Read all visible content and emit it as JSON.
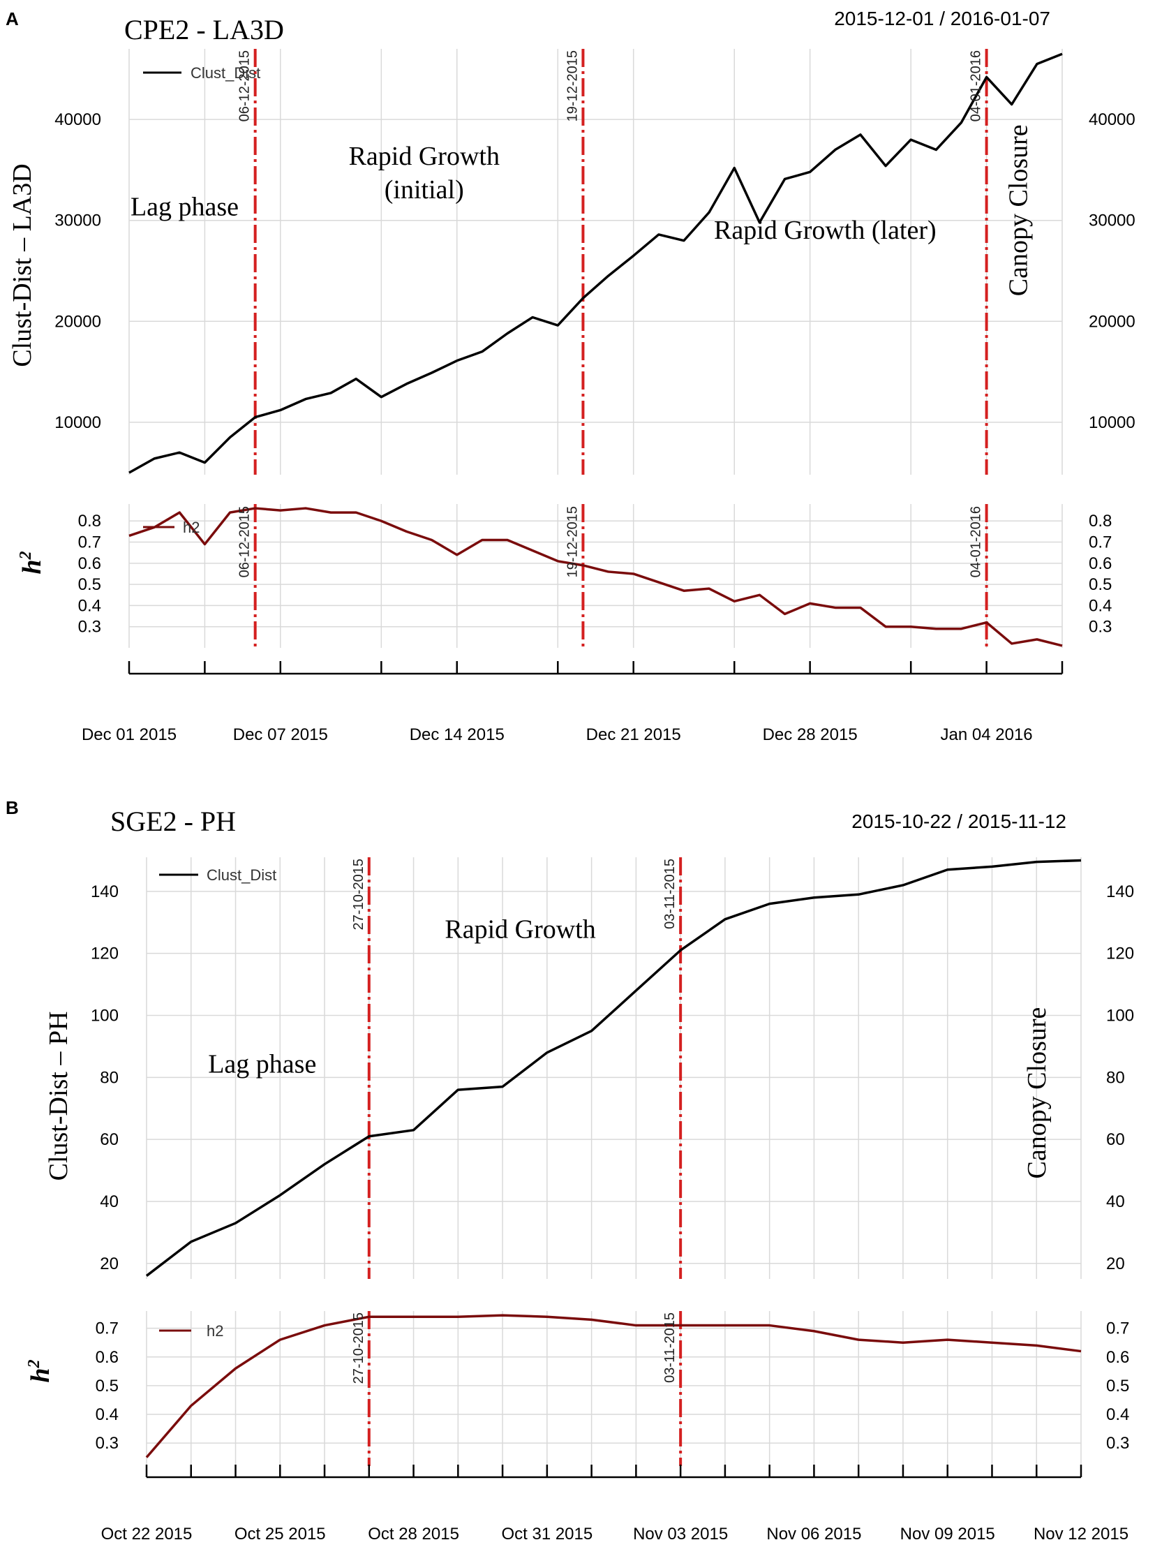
{
  "colors": {
    "clust_line": "#000000",
    "h2_line": "#7a0c0c",
    "event_line": "#d42020",
    "grid": "#d9d9d9",
    "axis": "#000000",
    "text": "#000000"
  },
  "chart_data": [
    {
      "type": "line",
      "panel_label": "A",
      "title": "CPE2 - LA3D",
      "date_range": "2015-12-01 / 2016-01-07",
      "x_dates": [
        "2015-12-01",
        "2016-01-07"
      ],
      "x_start": 0,
      "x_end": 37,
      "x_ticks": [
        {
          "x": 0,
          "label": "Dec 01 2015"
        },
        {
          "x": 6,
          "label": "Dec 07 2015"
        },
        {
          "x": 13,
          "label": "Dec 14 2015"
        },
        {
          "x": 20,
          "label": "Dec 21 2015"
        },
        {
          "x": 27,
          "label": "Dec 28 2015"
        },
        {
          "x": 34,
          "label": "Jan 04 2016"
        }
      ],
      "x_grid": [
        0,
        3,
        6,
        10,
        13,
        17,
        20,
        24,
        27,
        31,
        34,
        37
      ],
      "main": {
        "ylabel": "Clust-Dist – LA3D",
        "ylim": [
          4800,
          47000
        ],
        "yticks": [
          10000,
          20000,
          30000,
          40000
        ],
        "ytick_labels": [
          "10000",
          "20000",
          "30000",
          "40000"
        ],
        "legend": "Clust_Dist",
        "series": {
          "name": "Clust_Dist",
          "x": [
            0,
            1,
            2,
            3,
            4,
            5,
            6,
            7,
            8,
            9,
            10,
            11,
            12,
            13,
            14,
            15,
            16,
            17,
            18,
            19,
            20,
            21,
            22,
            23,
            24,
            25,
            26,
            27,
            28,
            29,
            30,
            31,
            32,
            33,
            34,
            35,
            36,
            37
          ],
          "values": [
            5000,
            6400,
            7000,
            6000,
            8500,
            10500,
            11200,
            12300,
            12900,
            14300,
            12500,
            13800,
            14900,
            16100,
            17000,
            18800,
            20400,
            19600,
            22300,
            24500,
            26500,
            28600,
            28000,
            30800,
            35200,
            29800,
            34100,
            34800,
            37000,
            38500,
            35400,
            38000,
            37000,
            39700,
            44200,
            41500,
            45500,
            46500
          ]
        }
      },
      "sub": {
        "ylabel": "h",
        "ylabel_sup": "2",
        "ylim": [
          0.2,
          0.88
        ],
        "yticks": [
          0.3,
          0.4,
          0.5,
          0.6,
          0.7,
          0.8
        ],
        "ytick_labels": [
          "0.3",
          "0.4",
          "0.5",
          "0.6",
          "0.7",
          "0.8"
        ],
        "legend": "h2",
        "series": {
          "name": "h2",
          "x": [
            0,
            1,
            2,
            3,
            4,
            5,
            6,
            7,
            8,
            9,
            10,
            11,
            12,
            13,
            14,
            15,
            16,
            17,
            18,
            19,
            20,
            21,
            22,
            23,
            24,
            25,
            26,
            27,
            28,
            29,
            30,
            31,
            32,
            33,
            34,
            35,
            36,
            37
          ],
          "values": [
            0.73,
            0.77,
            0.84,
            0.69,
            0.84,
            0.86,
            0.85,
            0.86,
            0.84,
            0.84,
            0.8,
            0.75,
            0.71,
            0.64,
            0.71,
            0.71,
            0.66,
            0.61,
            0.59,
            0.56,
            0.55,
            0.51,
            0.47,
            0.48,
            0.42,
            0.45,
            0.36,
            0.41,
            0.39,
            0.39,
            0.3,
            0.3,
            0.29,
            0.29,
            0.32,
            0.22,
            0.24,
            0.21
          ]
        }
      },
      "events": [
        {
          "x": 5,
          "label": "06-12-2015"
        },
        {
          "x": 18,
          "label": "19-12-2015"
        },
        {
          "x": 34,
          "label": "04-01-2016"
        }
      ],
      "annotations": [
        {
          "text": "Lag phase",
          "x": 2.2,
          "y": 30500
        },
        {
          "text": "Rapid Growth",
          "x": 11.7,
          "y": 35500
        },
        {
          "text": "(initial)",
          "x": 11.7,
          "y": 32200
        },
        {
          "text": "Rapid Growth (later)",
          "x": 27.6,
          "y": 28200
        },
        {
          "text": "Canopy Closure",
          "x": 35.6,
          "y": 31000,
          "vertical": true
        }
      ]
    },
    {
      "type": "line",
      "panel_label": "B",
      "title": "SGE2 - PH",
      "date_range": "2015-10-22 / 2015-11-12",
      "x_dates": [
        "2015-10-22",
        "2015-11-12"
      ],
      "x_start": 0,
      "x_end": 21,
      "x_ticks": [
        {
          "x": 0,
          "label": "Oct 22 2015"
        },
        {
          "x": 3,
          "label": "Oct 25 2015"
        },
        {
          "x": 6,
          "label": "Oct 28 2015"
        },
        {
          "x": 9,
          "label": "Oct 31 2015"
        },
        {
          "x": 12,
          "label": "Nov 03 2015"
        },
        {
          "x": 15,
          "label": "Nov 06 2015"
        },
        {
          "x": 18,
          "label": "Nov 09 2015"
        },
        {
          "x": 21,
          "label": "Nov 12 2015"
        }
      ],
      "x_grid": [
        0,
        1,
        2,
        3,
        4,
        5,
        6,
        7,
        8,
        9,
        10,
        11,
        12,
        13,
        14,
        15,
        16,
        17,
        18,
        19,
        20,
        21
      ],
      "main": {
        "ylabel": "Clust-Dist – PH",
        "ylim": [
          15,
          151
        ],
        "yticks": [
          20,
          40,
          60,
          80,
          100,
          120,
          140
        ],
        "ytick_labels": [
          "20",
          "40",
          "60",
          "80",
          "100",
          "120",
          "140"
        ],
        "legend": "Clust_Dist",
        "series": {
          "name": "Clust_Dist",
          "x": [
            0,
            1,
            2,
            3,
            4,
            5,
            6,
            7,
            8,
            9,
            10,
            11,
            12,
            13,
            14,
            15,
            16,
            17,
            18,
            19,
            20,
            21
          ],
          "values": [
            16,
            27,
            33,
            42,
            52,
            61,
            63,
            76,
            77,
            88,
            95,
            108,
            121,
            131,
            136,
            138,
            139,
            142,
            147,
            148,
            149.5,
            150
          ]
        }
      },
      "sub": {
        "ylabel": "h",
        "ylabel_sup": "2",
        "ylim": [
          0.22,
          0.76
        ],
        "yticks": [
          0.3,
          0.4,
          0.5,
          0.6,
          0.7
        ],
        "ytick_labels": [
          "0.3",
          "0.4",
          "0.5",
          "0.6",
          "0.7"
        ],
        "legend": "h2",
        "series": {
          "name": "h2",
          "x": [
            0,
            1,
            2,
            3,
            4,
            5,
            6,
            7,
            8,
            9,
            10,
            11,
            12,
            13,
            14,
            15,
            16,
            17,
            18,
            19,
            20,
            21
          ],
          "values": [
            0.25,
            0.43,
            0.56,
            0.66,
            0.71,
            0.74,
            0.74,
            0.74,
            0.745,
            0.74,
            0.73,
            0.71,
            0.71,
            0.71,
            0.71,
            0.69,
            0.66,
            0.65,
            0.66,
            0.65,
            0.64,
            0.62
          ]
        }
      },
      "events": [
        {
          "x": 5,
          "label": "27-10-2015"
        },
        {
          "x": 12,
          "label": "03-11-2015"
        }
      ],
      "annotations": [
        {
          "text": "Rapid Growth",
          "x": 8.4,
          "y": 125
        },
        {
          "text": "Lag phase",
          "x": 2.6,
          "y": 81.5
        },
        {
          "text": "Canopy Closure",
          "x": 20.2,
          "y": 75,
          "vertical": true
        }
      ]
    }
  ]
}
